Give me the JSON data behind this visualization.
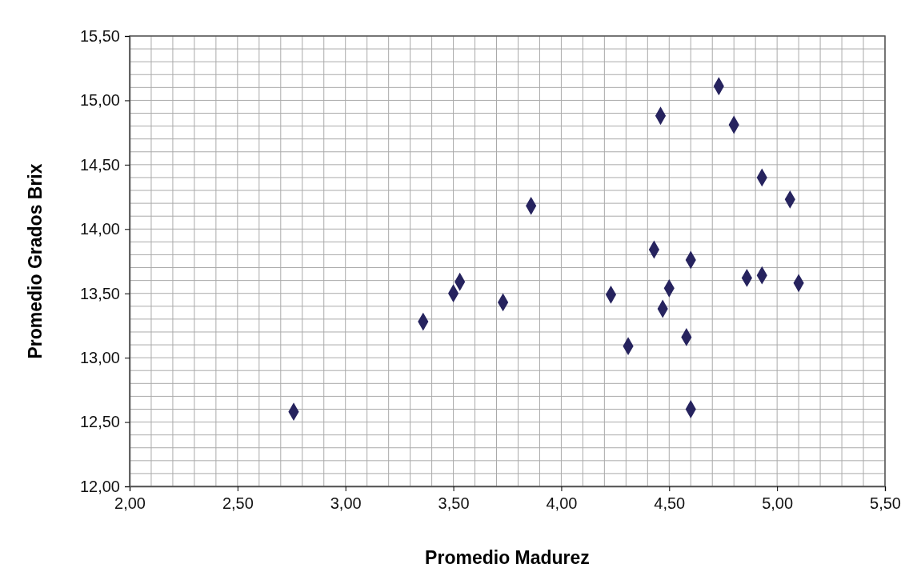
{
  "chart_data": {
    "type": "scatter",
    "xlabel": "Promedio Madurez",
    "ylabel": "Promedio Grados Brix",
    "x": [
      2.76,
      3.36,
      3.5,
      3.53,
      3.73,
      3.86,
      4.23,
      4.31,
      4.43,
      4.46,
      4.47,
      4.5,
      4.58,
      4.6,
      4.6,
      4.73,
      4.8,
      4.86,
      4.93,
      4.93,
      5.06,
      5.1
    ],
    "series": [
      {
        "color": "#26235e",
        "values": [
          12.58,
          13.28,
          13.5,
          13.59,
          13.43,
          14.18,
          13.49,
          13.09,
          13.84,
          14.88,
          13.38,
          13.54,
          13.16,
          13.76,
          12.6,
          15.11,
          14.81,
          13.62,
          13.64,
          14.4,
          14.23,
          13.58
        ]
      }
    ],
    "xlim": [
      2,
      5.5
    ],
    "ylim": [
      12,
      15.5
    ],
    "xticks": [
      {
        "value": 2,
        "label": "2,00"
      },
      {
        "value": 2.5,
        "label": "2,50"
      },
      {
        "value": 3,
        "label": "3,00"
      },
      {
        "value": 3.5,
        "label": "3,50"
      },
      {
        "value": 4,
        "label": "4,00"
      },
      {
        "value": 4.5,
        "label": "4,50"
      },
      {
        "value": 5,
        "label": "5,00"
      },
      {
        "value": 5.5,
        "label": "5,50"
      }
    ],
    "yticks": [
      {
        "value": 12,
        "label": "12,00"
      },
      {
        "value": 12.5,
        "label": "12,50"
      },
      {
        "value": 13,
        "label": "13,00"
      },
      {
        "value": 13.5,
        "label": "13,50"
      },
      {
        "value": 14,
        "label": "14,00"
      },
      {
        "value": 14.5,
        "label": "14,50"
      },
      {
        "value": 15,
        "label": "15,00"
      },
      {
        "value": 15.5,
        "label": "15,50"
      }
    ],
    "grid": true,
    "marker": "diamond"
  }
}
